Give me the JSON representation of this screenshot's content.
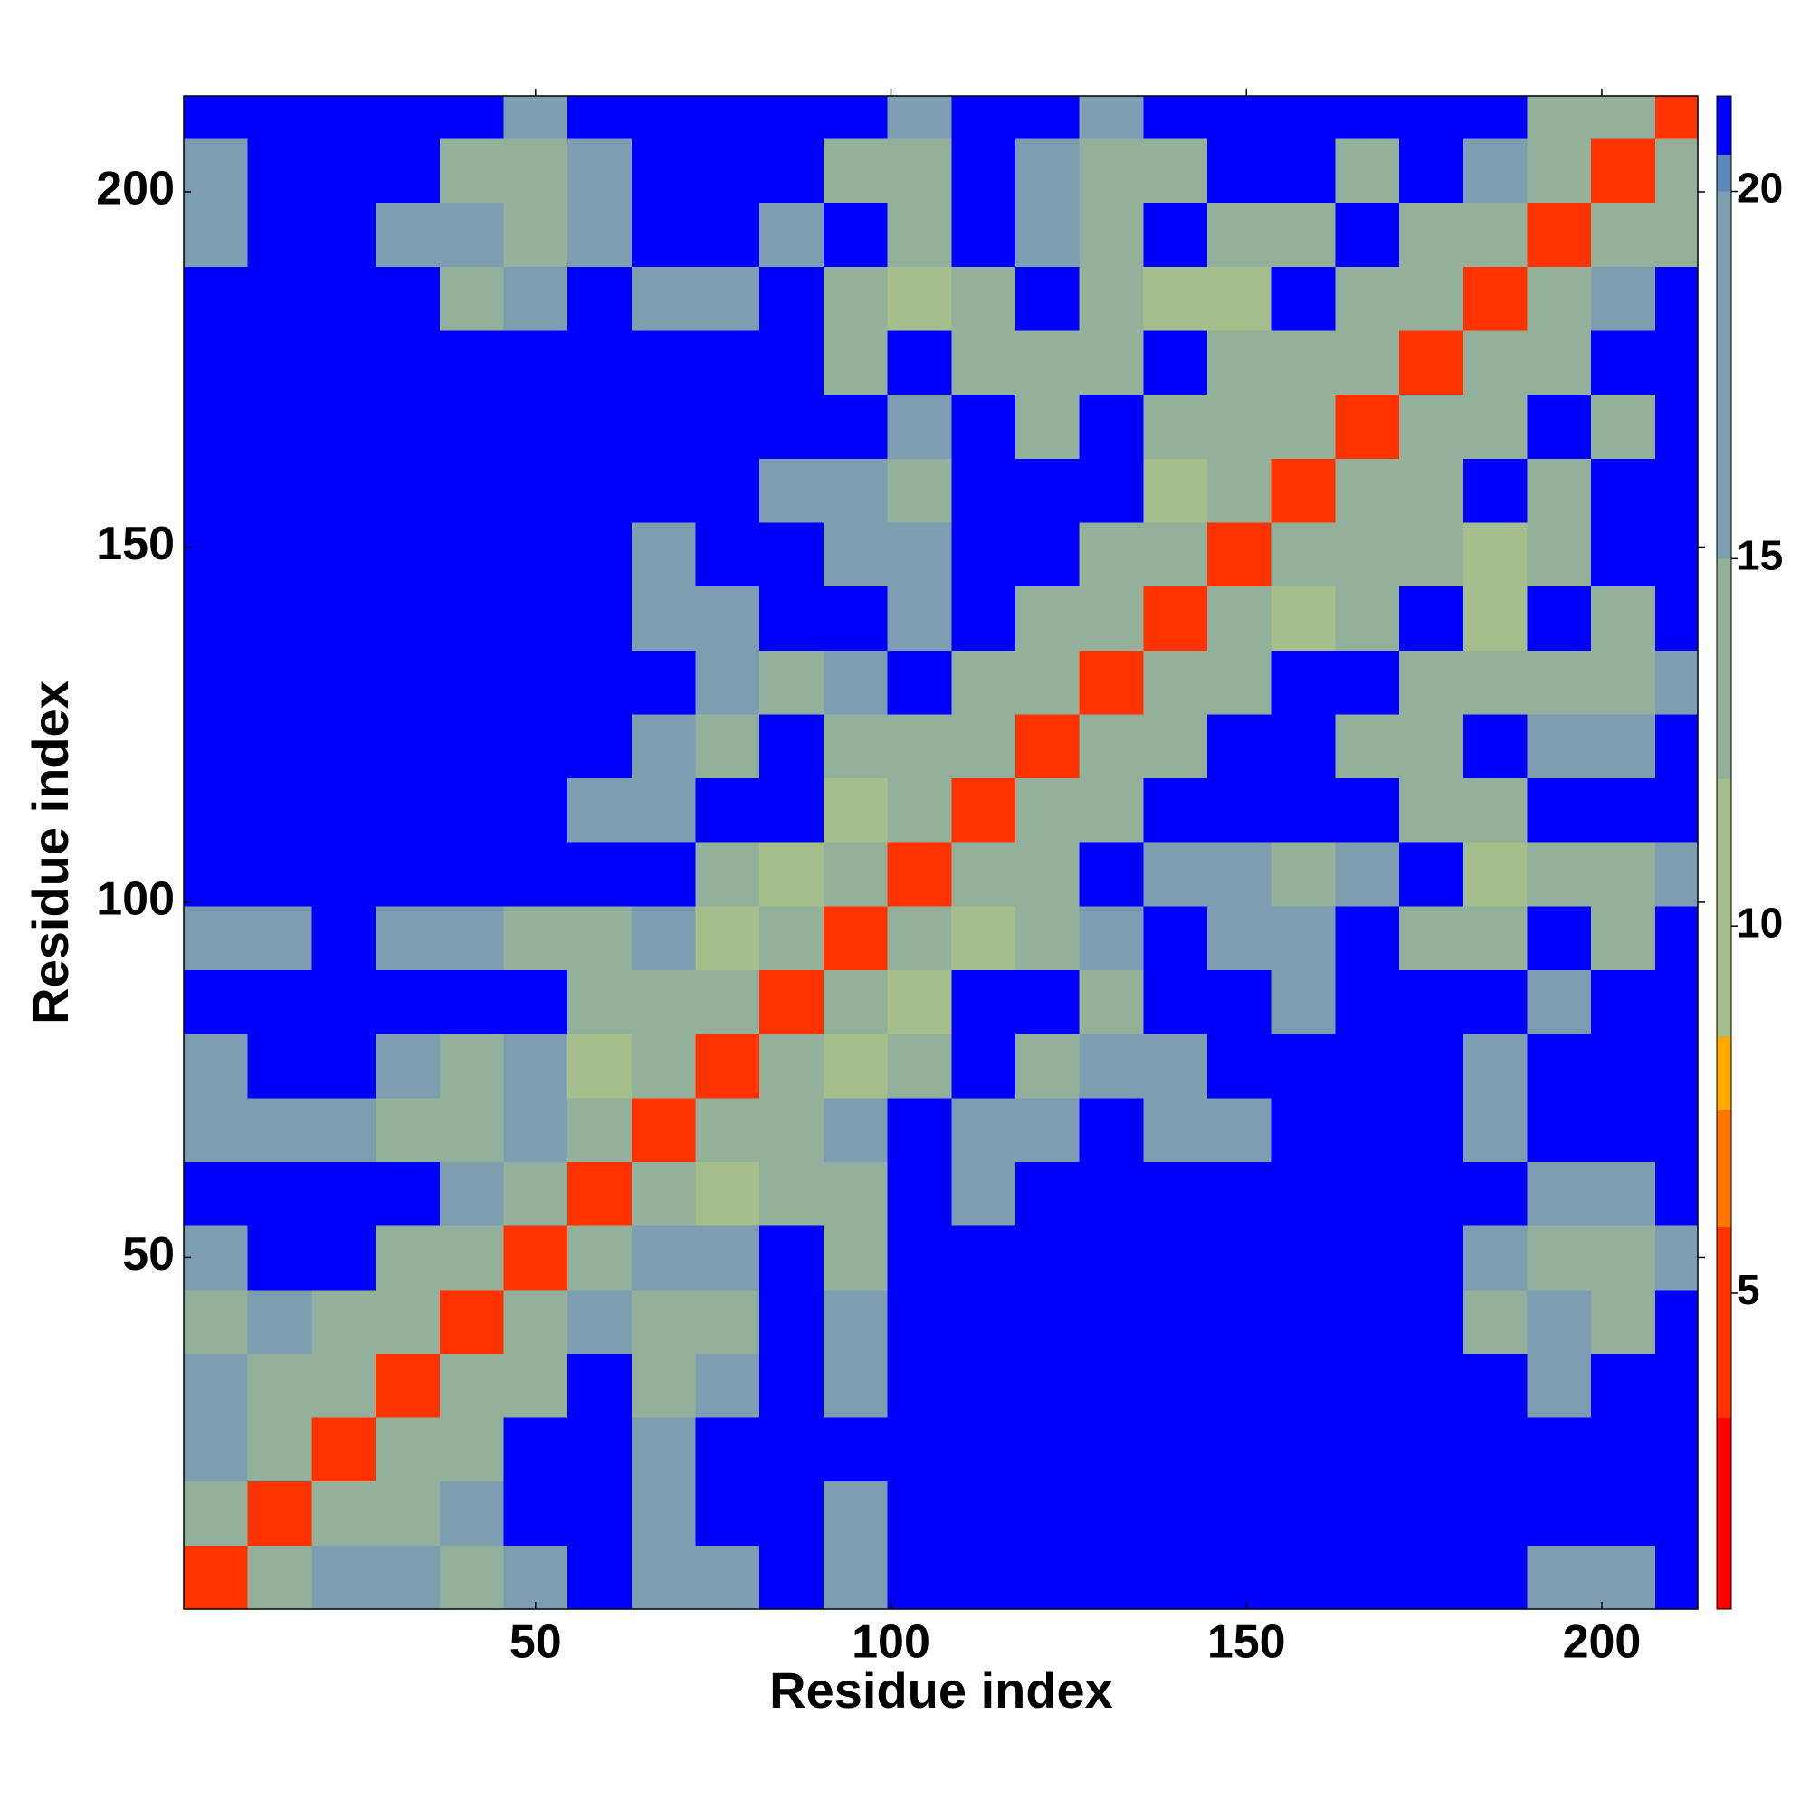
{
  "chart_data": {
    "type": "heatmap",
    "xlabel": "Residue index",
    "ylabel": "Residue index",
    "x_edges": [
      0.5,
      9.5,
      18.5,
      27.5,
      36.5,
      45.5,
      54.5,
      63.5,
      72.5,
      81.5,
      90.5,
      99.5,
      108.5,
      117.5,
      126.5,
      135.5,
      144.5,
      153.5,
      162.5,
      171.5,
      180.5,
      189.5,
      198.5,
      207.5,
      213.5
    ],
    "y_edges": [
      0.5,
      9.5,
      18.5,
      27.5,
      36.5,
      45.5,
      54.5,
      63.5,
      72.5,
      81.5,
      90.5,
      99.5,
      108.5,
      117.5,
      126.5,
      135.5,
      144.5,
      153.5,
      162.5,
      171.5,
      180.5,
      189.5,
      198.5,
      207.5,
      213.5
    ],
    "xlim": [
      0.5,
      213.5
    ],
    "ylim": [
      0.5,
      213.5
    ],
    "xticks": [
      50,
      100,
      150,
      200
    ],
    "yticks": [
      50,
      100,
      150,
      200
    ],
    "clim": [
      0.7,
      21.3
    ],
    "cticks": [
      5,
      10,
      15,
      20
    ],
    "colormap": [
      [
        0.7,
        "#ff0000"
      ],
      [
        3.3,
        "#ff3300"
      ],
      [
        5.9,
        "#ff7700"
      ],
      [
        7.5,
        "#ffaa00"
      ],
      [
        8.5,
        "#a5bf8c"
      ],
      [
        12,
        "#93b09a"
      ],
      [
        15,
        "#7d9db0"
      ],
      [
        20,
        "#5e88b8"
      ],
      [
        20.5,
        "#0000ff"
      ]
    ],
    "z": [
      [
        4,
        12,
        15,
        16,
        14,
        15,
        21,
        16,
        17,
        21,
        17,
        21,
        21,
        21,
        21,
        21,
        21,
        21,
        21,
        21,
        21,
        17,
        17,
        21
      ],
      [
        12,
        4,
        12,
        14,
        15,
        21,
        21,
        17,
        21,
        21,
        18,
        21,
        21,
        21,
        21,
        21,
        21,
        21,
        21,
        21,
        21,
        21,
        21,
        21
      ],
      [
        15,
        12,
        4,
        12,
        14,
        21,
        21,
        15,
        21,
        21,
        21,
        21,
        21,
        21,
        21,
        21,
        21,
        21,
        21,
        21,
        21,
        21,
        21,
        21
      ],
      [
        16,
        14,
        12,
        4,
        12,
        13,
        21,
        14,
        15,
        21,
        17,
        21,
        21,
        21,
        21,
        21,
        21,
        21,
        21,
        21,
        21,
        16,
        21,
        21
      ],
      [
        14,
        15,
        14,
        12,
        4,
        12,
        17,
        14,
        14,
        21,
        15,
        21,
        21,
        21,
        21,
        21,
        21,
        21,
        21,
        21,
        14,
        15,
        14,
        21
      ],
      [
        15,
        21,
        21,
        13,
        12,
        4,
        12,
        17,
        15,
        21,
        14,
        21,
        21,
        21,
        21,
        21,
        21,
        21,
        21,
        21,
        15,
        14,
        14,
        15
      ],
      [
        21,
        21,
        21,
        21,
        17,
        12,
        4,
        12,
        9,
        13,
        14,
        21,
        17,
        21,
        21,
        21,
        21,
        21,
        21,
        21,
        21,
        17,
        15,
        21
      ],
      [
        16,
        17,
        15,
        14,
        14,
        17,
        12,
        4,
        12,
        13,
        16,
        21,
        15,
        15,
        21,
        16,
        16,
        21,
        21,
        21,
        15,
        21,
        21,
        21
      ],
      [
        17,
        21,
        21,
        15,
        14,
        15,
        9,
        12,
        4,
        12,
        10,
        14,
        21,
        14,
        16,
        16,
        21,
        21,
        21,
        21,
        16,
        21,
        21,
        21
      ],
      [
        21,
        21,
        21,
        21,
        21,
        21,
        13,
        13,
        12,
        4,
        12,
        9,
        21,
        21,
        14,
        21,
        21,
        15,
        21,
        21,
        21,
        15,
        21,
        21
      ],
      [
        17,
        18,
        21,
        17,
        15,
        14,
        14,
        16,
        10,
        12,
        4,
        12,
        10,
        14,
        15,
        21,
        15,
        15,
        21,
        14,
        13,
        21,
        14,
        21
      ],
      [
        21,
        21,
        21,
        21,
        21,
        21,
        21,
        21,
        14,
        9,
        12,
        4,
        12,
        12,
        21,
        15,
        16,
        14,
        15,
        21,
        9,
        14,
        14,
        15
      ],
      [
        21,
        21,
        21,
        21,
        21,
        21,
        17,
        15,
        21,
        21,
        10,
        12,
        4,
        12,
        14,
        21,
        21,
        21,
        21,
        14,
        13,
        21,
        21,
        21
      ],
      [
        21,
        21,
        21,
        21,
        21,
        21,
        21,
        15,
        14,
        21,
        14,
        12,
        12,
        4,
        12,
        13,
        21,
        21,
        13,
        14,
        21,
        16,
        15,
        21
      ],
      [
        21,
        21,
        21,
        21,
        21,
        21,
        21,
        21,
        16,
        14,
        15,
        21,
        14,
        12,
        4,
        12,
        13,
        21,
        21,
        13,
        13,
        14,
        14,
        15
      ],
      [
        21,
        21,
        21,
        21,
        21,
        21,
        21,
        16,
        16,
        21,
        21,
        15,
        21,
        13,
        12,
        4,
        12,
        9,
        13,
        21,
        9,
        21,
        14,
        21
      ],
      [
        21,
        21,
        21,
        21,
        21,
        21,
        21,
        16,
        21,
        21,
        15,
        16,
        21,
        21,
        13,
        12,
        4,
        12,
        13,
        14,
        9,
        13,
        21,
        21
      ],
      [
        21,
        21,
        21,
        21,
        21,
        21,
        21,
        21,
        21,
        15,
        15,
        14,
        21,
        21,
        21,
        9,
        12,
        4,
        12,
        14,
        21,
        14,
        21,
        21
      ],
      [
        21,
        21,
        21,
        21,
        21,
        21,
        21,
        21,
        21,
        21,
        21,
        15,
        21,
        13,
        21,
        13,
        13,
        12,
        4,
        12,
        14,
        21,
        13,
        21
      ],
      [
        21,
        21,
        21,
        21,
        21,
        21,
        21,
        21,
        21,
        21,
        14,
        21,
        14,
        14,
        13,
        21,
        14,
        14,
        12,
        4,
        12,
        14,
        21,
        21
      ],
      [
        21,
        21,
        21,
        21,
        14,
        15,
        21,
        15,
        16,
        21,
        13,
        9,
        13,
        21,
        13,
        9,
        9,
        21,
        14,
        12,
        4,
        12,
        15,
        21
      ],
      [
        17,
        21,
        21,
        16,
        15,
        14,
        17,
        21,
        21,
        15,
        21,
        14,
        21,
        16,
        14,
        21,
        13,
        14,
        21,
        14,
        12,
        4,
        12,
        14
      ],
      [
        17,
        21,
        21,
        21,
        14,
        14,
        15,
        21,
        21,
        21,
        14,
        14,
        21,
        15,
        14,
        14,
        21,
        21,
        13,
        21,
        15,
        12,
        4,
        12
      ],
      [
        21,
        21,
        21,
        21,
        21,
        15,
        21,
        21,
        21,
        21,
        21,
        15,
        21,
        21,
        15,
        21,
        21,
        21,
        21,
        21,
        21,
        14,
        12,
        4
      ]
    ]
  }
}
